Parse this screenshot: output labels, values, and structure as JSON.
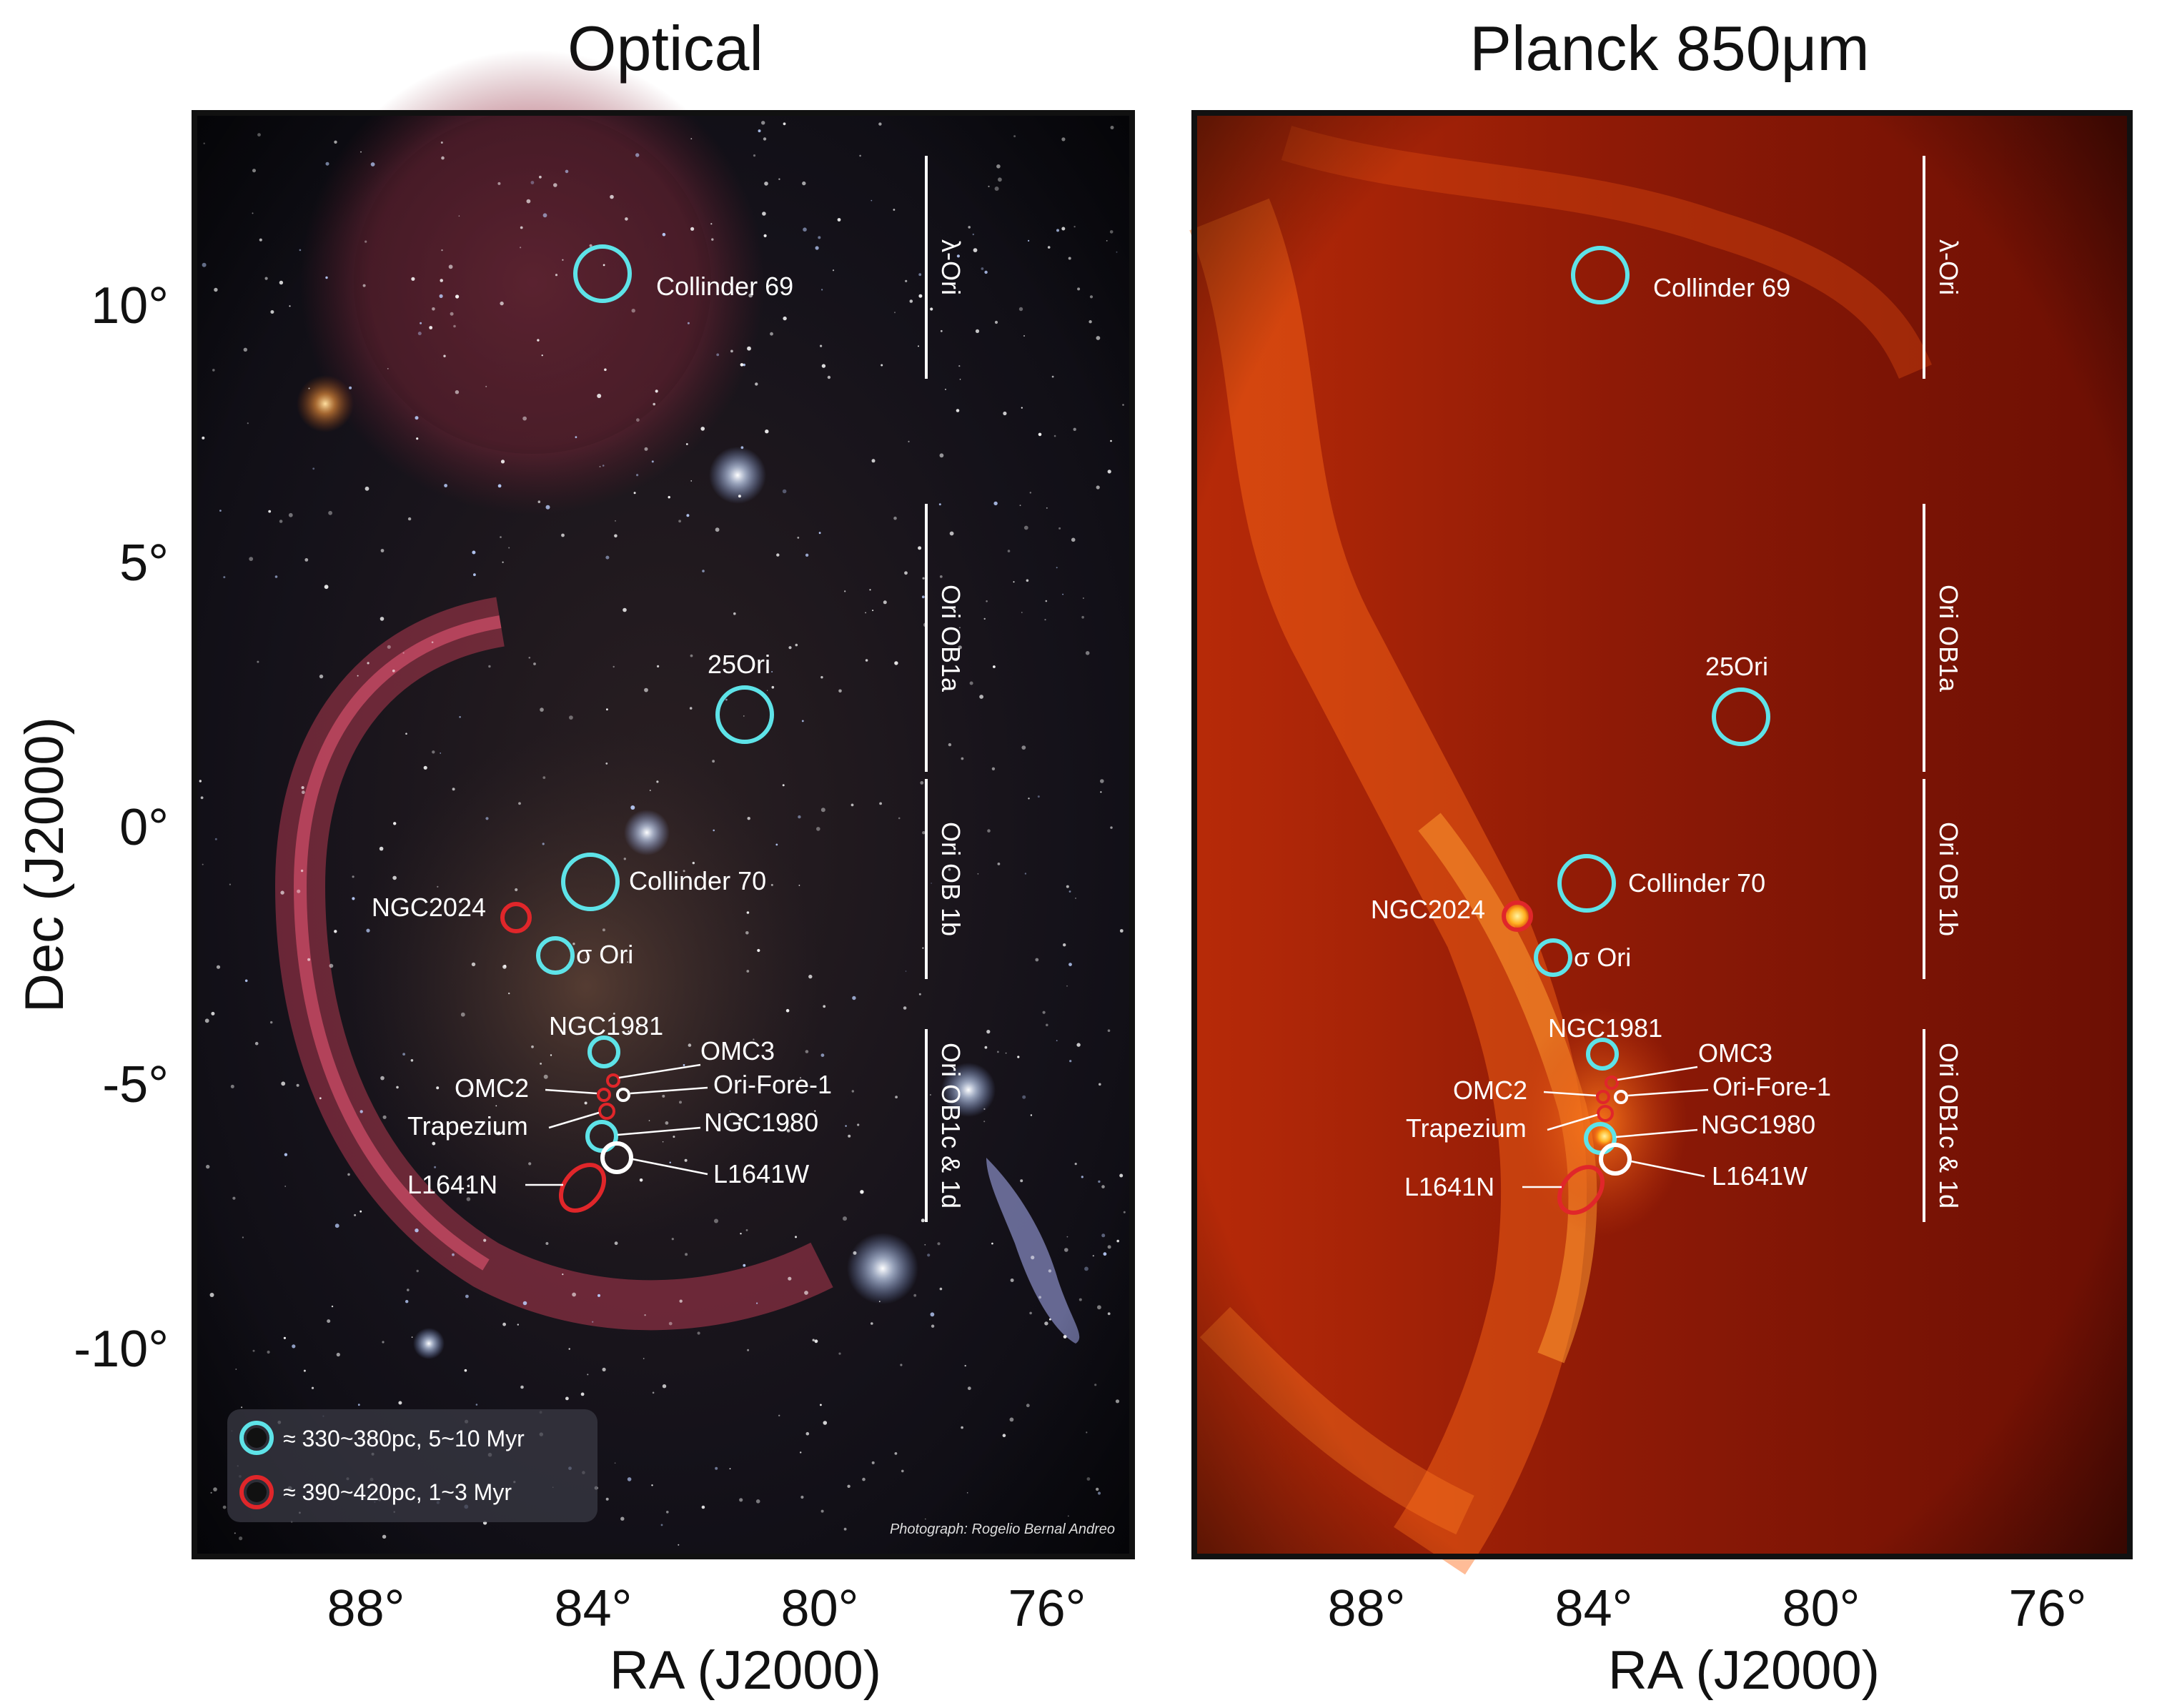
{
  "panels": {
    "optical": {
      "title": "Optical"
    },
    "planck": {
      "title": "Planck 850μm"
    }
  },
  "axes": {
    "y_label": "Dec (J2000)",
    "x_label": "RA (J2000)",
    "dec_ticks": [
      "10°",
      "5°",
      "0°",
      "-5°",
      "-10°"
    ],
    "ra_ticks": [
      "88°",
      "84°",
      "80°",
      "76°"
    ]
  },
  "objects": {
    "collinder69": "Collinder 69",
    "ori25": "25Ori",
    "collinder70": "Collinder 70",
    "ngc2024": "NGC2024",
    "sigma_ori": "σ Ori",
    "ngc1981": "NGC1981",
    "omc3": "OMC3",
    "omc2": "OMC2",
    "ori_fore_1": "Ori-Fore-1",
    "trapezium": "Trapezium",
    "ngc1980": "NGC1980",
    "l1641n": "L1641N",
    "l1641w": "L1641W"
  },
  "groups": {
    "lambda_ori": "λ-Ori",
    "ob1a": "Ori OB1a",
    "ob1b": "Ori  OB 1b",
    "ob1cd": "Ori  OB1c & 1d"
  },
  "legend": {
    "cyan": "≈ 330~380pc, 5~10 Myr",
    "red": "≈ 390~420pc, 1~3 Myr"
  },
  "credit": "Photograph: Rogelio Bernal Andreo",
  "colors": {
    "cyan": "#5ee3e8",
    "red": "#e0262a",
    "white": "#ffffff",
    "frame": "#111111"
  }
}
